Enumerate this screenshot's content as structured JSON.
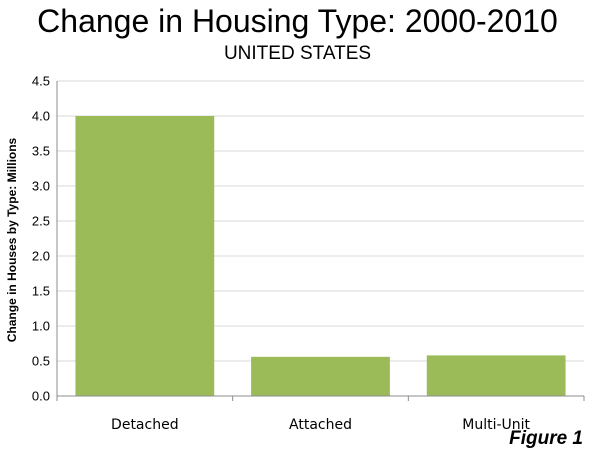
{
  "chart_data": {
    "type": "bar",
    "title": "Change in Housing Type: 2000-2010",
    "subtitle": "UNITED STATES",
    "ylabel": "Change  in Houses by Type: Millions",
    "xlabel": "",
    "categories": [
      "Detached",
      "Attached",
      "Multi-Unit"
    ],
    "values": [
      4.0,
      0.56,
      0.58
    ],
    "ylim": [
      0,
      4.5
    ],
    "yticks": [
      "0.0",
      "0.5",
      "1.0",
      "1.5",
      "2.0",
      "2.5",
      "3.0",
      "3.5",
      "4.0",
      "4.5"
    ],
    "grid": true,
    "bar_color": "#9bbb59",
    "grid_color": "#d9d9d9",
    "annotation": "Figure 1"
  }
}
